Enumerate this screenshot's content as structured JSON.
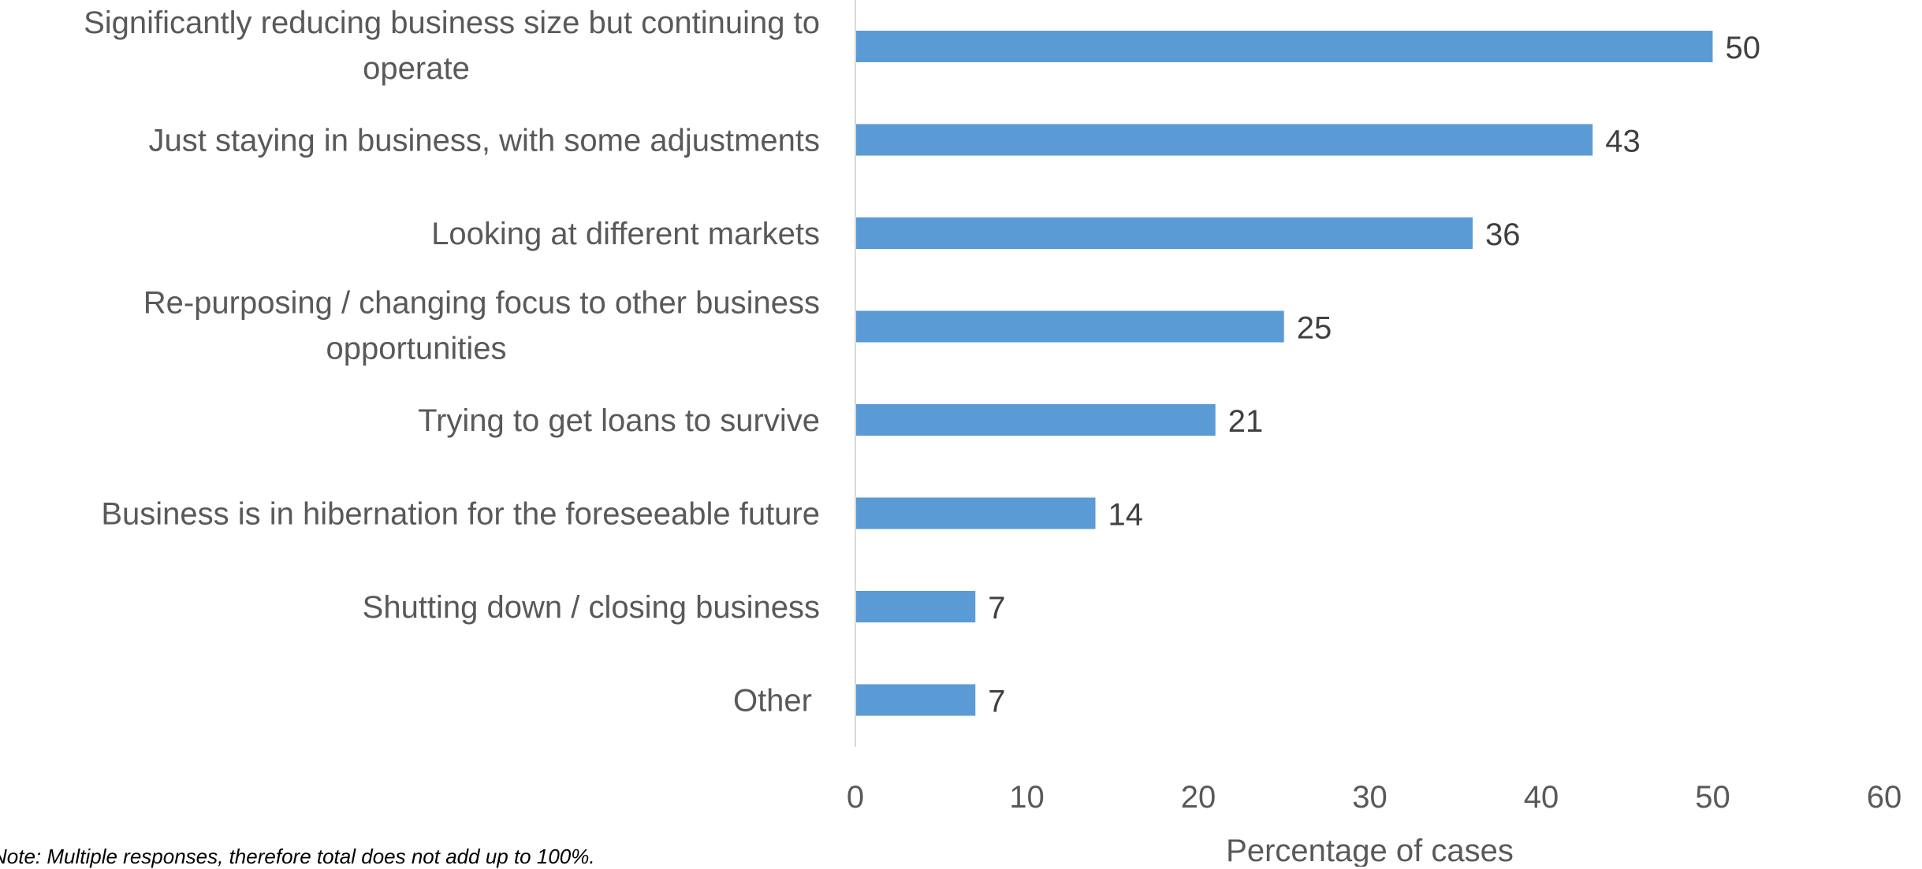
{
  "chart_data": {
    "type": "bar",
    "orientation": "horizontal",
    "categories": [
      "Significantly reducing business size but continuing to operate",
      "Just staying in business, with some adjustments",
      "Looking at different markets",
      "Re-purposing / changing focus to other business opportunities",
      "Trying to get loans to survive",
      "Business is in hibernation for the foreseeable future",
      "Shutting down / closing business",
      "Other"
    ],
    "category_lines": [
      [
        "Significantly reducing business size but continuing to",
        "operate"
      ],
      [
        "Just staying in business, with some adjustments"
      ],
      [
        "Looking at different markets"
      ],
      [
        "Re-purposing / changing focus to other business",
        "opportunities"
      ],
      [
        "Trying to get loans to survive"
      ],
      [
        "Business is in hibernation for the foreseeable future"
      ],
      [
        "Shutting down / closing business"
      ],
      [
        "Other"
      ]
    ],
    "values": [
      50,
      43,
      36,
      25,
      21,
      14,
      7,
      7
    ],
    "xlabel": "Percentage of cases",
    "ylabel": "",
    "xlim": [
      0,
      60
    ],
    "xticks": [
      "0",
      "10",
      "20",
      "30",
      "40",
      "50",
      "60"
    ],
    "grid": false,
    "legend": "none",
    "bar_color": "#5B9BD5"
  },
  "note": "Note: Multiple responses, therefore total does not add up to 100%."
}
